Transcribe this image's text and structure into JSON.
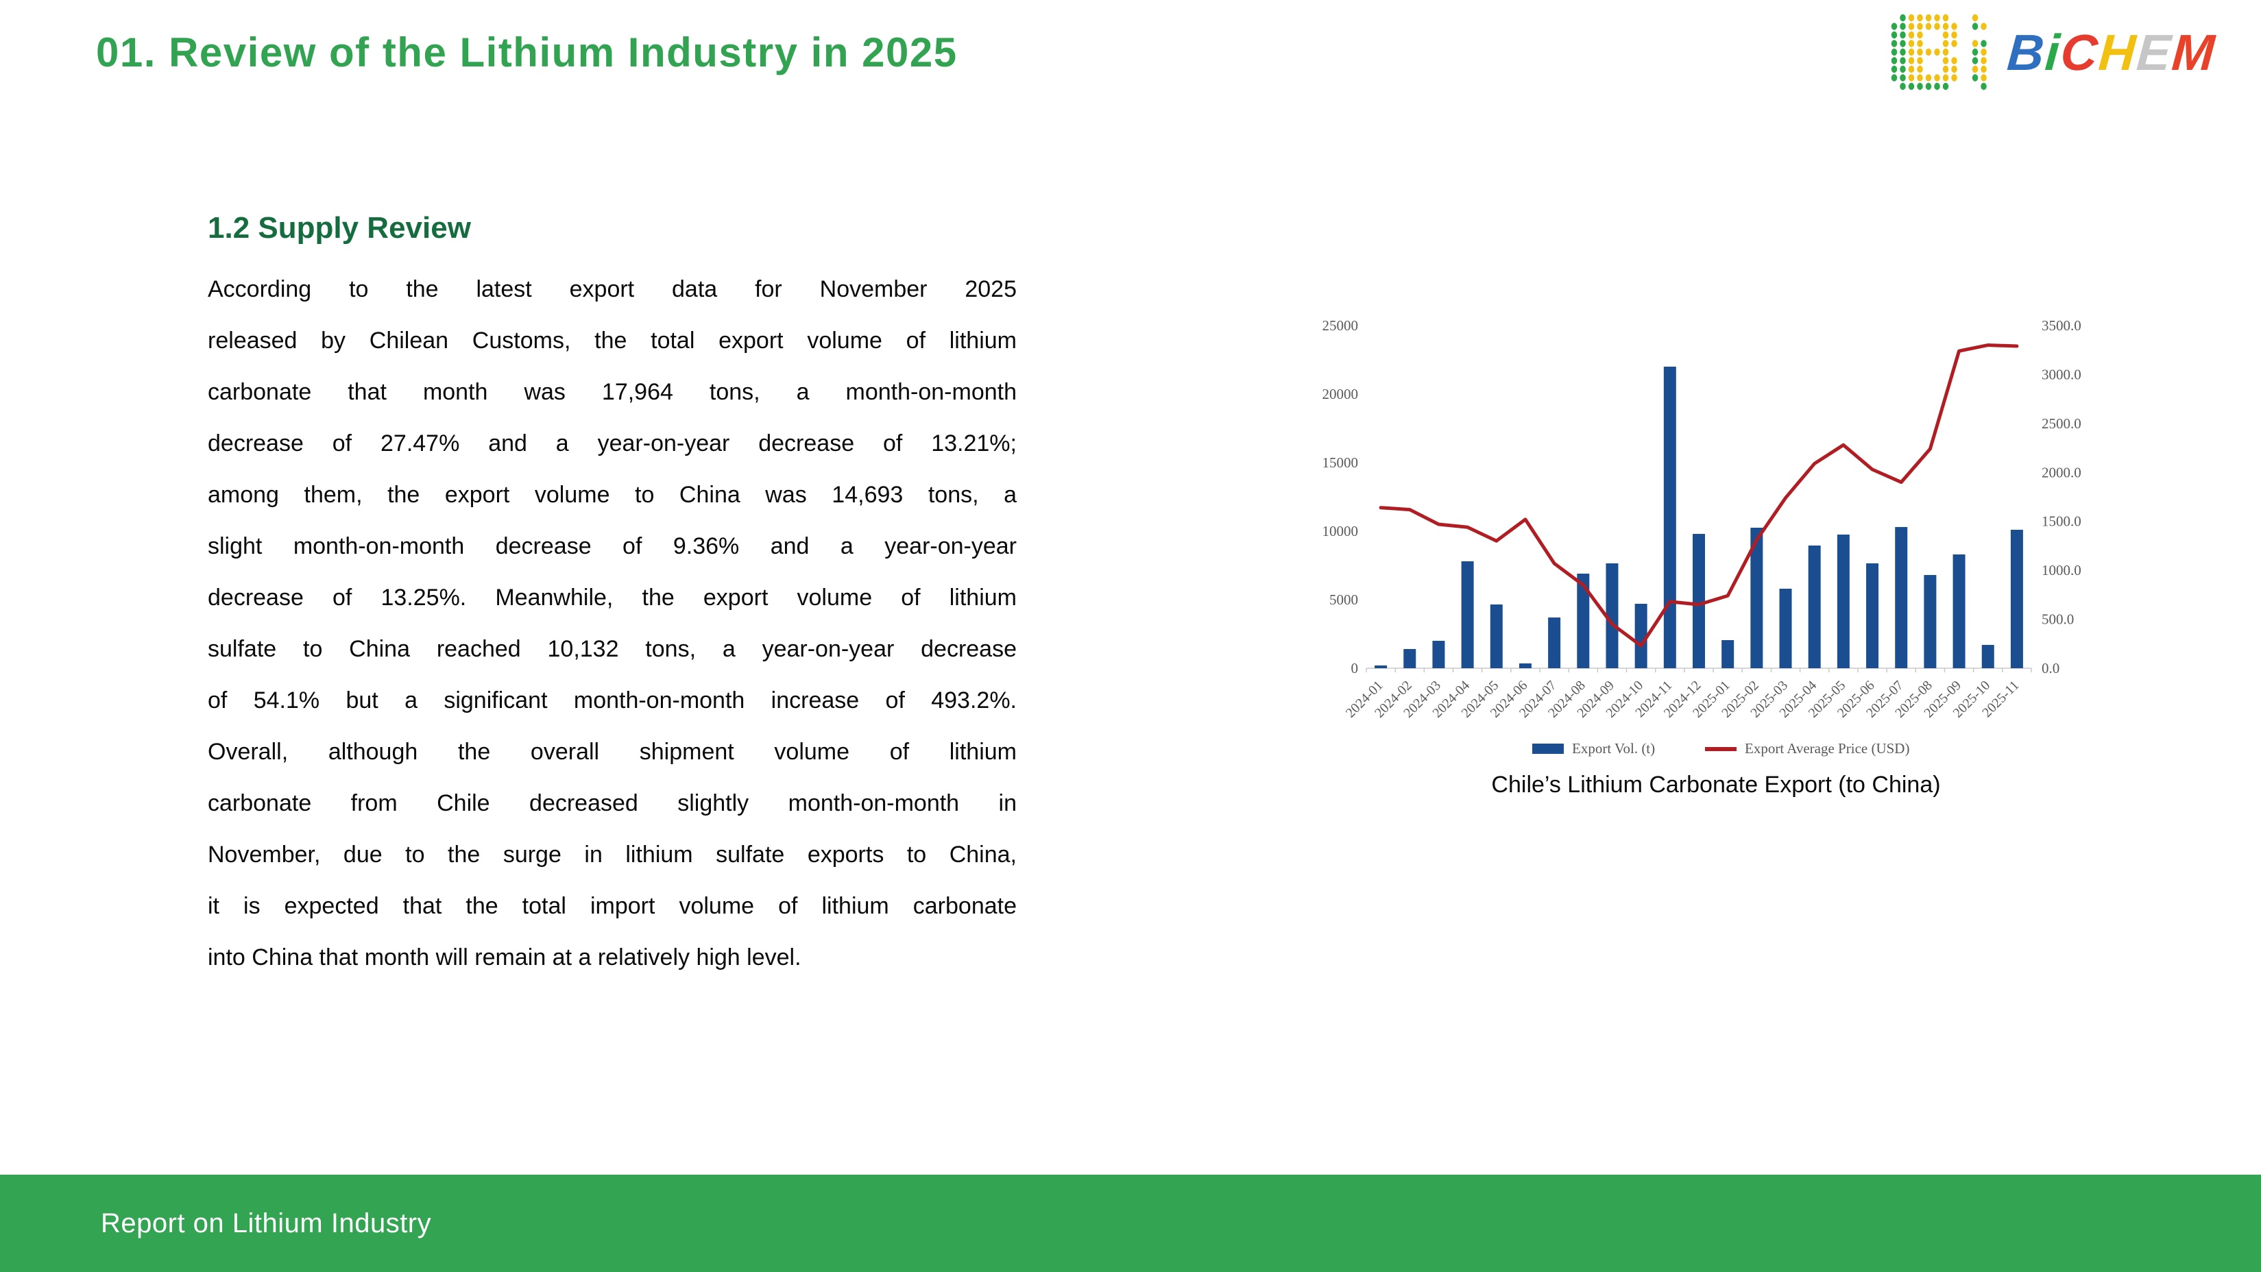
{
  "header": {
    "title": "01. Review of the Lithium Industry in 2025",
    "logo": {
      "name": "BiCHEM",
      "icon": "bichem-dot-matrix-icon",
      "letters": [
        {
          "char": "B",
          "color": "#2f6fc0"
        },
        {
          "char": "i",
          "color": "#2ba84a"
        },
        {
          "char": "C",
          "color": "#e63c2f"
        },
        {
          "char": "H",
          "color": "#f2c011"
        },
        {
          "char": "E",
          "color": "#c6c6c6"
        },
        {
          "char": "M",
          "color": "#e8432a"
        }
      ],
      "dot_colors": {
        "green": "#2ba84a",
        "yellow": "#f2c011"
      }
    }
  },
  "content": {
    "section_heading": "1.2 Supply Review",
    "paragraph_lines": [
      "According to the latest export data for November 2025",
      "released by Chilean Customs, the total export volume of lithium",
      "carbonate that month was 17,964 tons, a month-on-month",
      "decrease of 27.47% and a year-on-year decrease of 13.21%;",
      "among them, the export volume to China was 14,693 tons, a",
      "slight month-on-month decrease of 9.36% and a year-on-year",
      "decrease of 13.25%. Meanwhile, the export volume of lithium",
      "sulfate to China reached 10,132 tons, a year-on-year decrease",
      "of 54.1% but a significant month-on-month increase of 493.2%.",
      "Overall, although the overall shipment volume of lithium",
      "carbonate from Chile decreased slightly month-on-month in",
      "November, due to the surge in lithium sulfate exports to China,",
      "it is expected that the total import volume of lithium carbonate",
      "into China that month will remain at a relatively high level."
    ]
  },
  "chart_caption": "Chile’s Lithium Carbonate Export (to China)",
  "footer": {
    "text": "Report on Lithium Industry"
  },
  "chart_data": {
    "type": "bar",
    "subtype": "combo bar+line, dual axis",
    "title": "",
    "xlabel": "",
    "ylabel_left": "Export Vol. (t)",
    "ylabel_right": "Export Average Price (USD)",
    "grid": false,
    "legend_position": "bottom",
    "categories": [
      "2024-01",
      "2024-02",
      "2024-03",
      "2024-04",
      "2024-05",
      "2024-06",
      "2024-07",
      "2024-08",
      "2024-09",
      "2024-10",
      "2024-11",
      "2024-12",
      "2025-01",
      "2025-02",
      "2025-03",
      "2025-04",
      "2025-05",
      "2025-06",
      "2025-07",
      "2025-08",
      "2025-09",
      "2025-10",
      "2025-11"
    ],
    "series": [
      {
        "name": "Export Vol. (t)",
        "type": "bar",
        "axis": "left",
        "color": "#1b4e91",
        "values": [
          200,
          1400,
          2000,
          7800,
          4650,
          350,
          3700,
          6900,
          7650,
          4700,
          22000,
          9800,
          2050,
          10250,
          5800,
          8950,
          9750,
          7650,
          10300,
          6800,
          8300,
          1700,
          10100
        ]
      },
      {
        "name": "Export Average Price (USD)",
        "type": "line",
        "axis": "right",
        "color": "#b01e24",
        "values": [
          1640,
          1620,
          1470,
          1440,
          1300,
          1520,
          1070,
          850,
          450,
          230,
          680,
          650,
          740,
          1310,
          1740,
          2090,
          2280,
          2030,
          1900,
          2240,
          3240,
          3300,
          3290
        ]
      }
    ],
    "left_axis": {
      "range": [
        0,
        25000
      ],
      "ticks": [
        0,
        5000,
        10000,
        15000,
        20000,
        25000
      ],
      "tick_labels": [
        "0",
        "5000",
        "10000",
        "15000",
        "20000",
        "25000"
      ]
    },
    "right_axis": {
      "range": [
        0,
        3500
      ],
      "ticks": [
        0,
        500,
        1000,
        1500,
        2000,
        2500,
        3000,
        3500
      ],
      "tick_labels": [
        "0.0",
        "500.0",
        "1000.0",
        "1500.0",
        "2000.0",
        "2500.0",
        "3000.0",
        "3500.0"
      ]
    },
    "axis_text_color": "#595959",
    "axis_line_color": "#c8c8c8"
  }
}
